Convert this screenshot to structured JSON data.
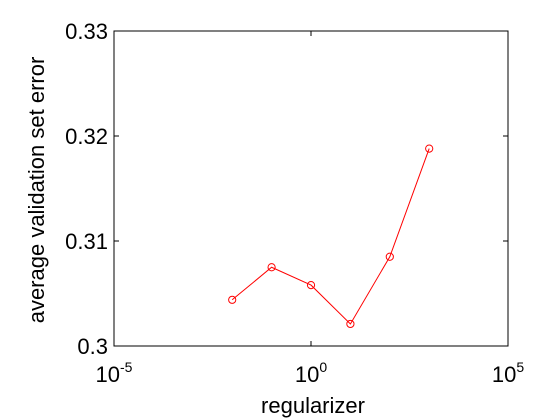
{
  "chart_data": {
    "type": "line",
    "title": "",
    "xlabel": "regularizer",
    "ylabel": "average validation set error",
    "x_scale": "log10",
    "xlim": [
      1e-05,
      100000
    ],
    "ylim": [
      0.3,
      0.33
    ],
    "x_ticks": [
      {
        "value": 1e-05,
        "base": "10",
        "exp": "-5"
      },
      {
        "value": 1,
        "base": "10",
        "exp": "0"
      },
      {
        "value": 100000,
        "base": "10",
        "exp": "5"
      }
    ],
    "y_ticks": [
      {
        "value": 0.3,
        "label": "0.3"
      },
      {
        "value": 0.31,
        "label": "0.31"
      },
      {
        "value": 0.32,
        "label": "0.32"
      },
      {
        "value": 0.33,
        "label": "0.33"
      }
    ],
    "grid": false,
    "series": [
      {
        "color": "#ff0000",
        "marker": "circle",
        "x": [
          0.01,
          0.1,
          1,
          10,
          100,
          1000
        ],
        "y": [
          0.3044,
          0.3075,
          0.3058,
          0.3021,
          0.3085,
          0.3188
        ]
      }
    ]
  }
}
